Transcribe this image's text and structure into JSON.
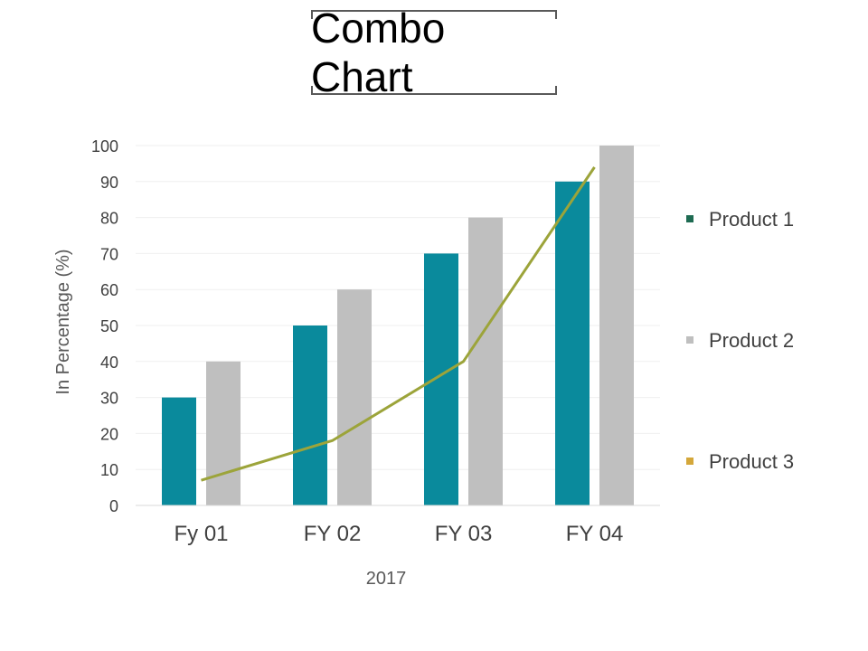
{
  "chart_data": {
    "title": "Combo Chart",
    "type": "bar",
    "categories": [
      "Fy 01",
      "FY 02",
      "FY 03",
      "FY  04"
    ],
    "xlabel": "2017",
    "ylabel": "In Percentage (%)",
    "ylim": [
      0,
      100
    ],
    "yticks": [
      0,
      10,
      20,
      30,
      40,
      50,
      60,
      70,
      80,
      90,
      100
    ],
    "grid": true,
    "legend_position": "right",
    "series": [
      {
        "name": "Product 1",
        "type": "bar",
        "color": "#0a8a9c",
        "legend_color": "#1e6b52",
        "values": [
          30,
          50,
          70,
          90
        ]
      },
      {
        "name": "Product 2",
        "type": "bar",
        "color": "#bfbfbf",
        "legend_color": "#bfbfbf",
        "values": [
          40,
          60,
          80,
          100
        ]
      },
      {
        "name": "Product 3",
        "type": "line",
        "color": "#9ca43a",
        "legend_color": "#d4a73a",
        "values": [
          7,
          18,
          40,
          94
        ]
      }
    ]
  }
}
